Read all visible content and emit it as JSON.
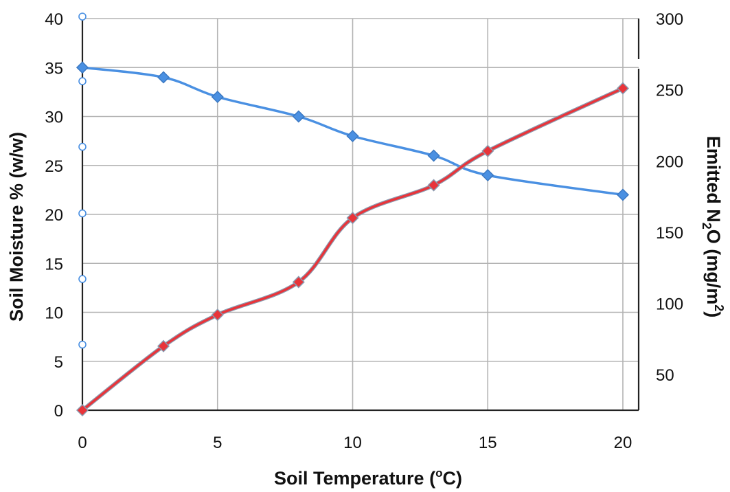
{
  "chart_data": {
    "type": "line",
    "xlabel": "Soil Temperature (",
    "xlabel_sup": "o",
    "xlabel_suffix": "C)",
    "ylabel": "Soil Moisture % (w/w)",
    "y2label_prefix": "Emitted N",
    "y2label_sub": "2",
    "y2label_mid": "O (mg/m",
    "y2label_sup": "2",
    "y2label_suffix": ")",
    "xlim": [
      0,
      20.6
    ],
    "ylim": [
      0,
      40
    ],
    "y2lim": [
      25,
      300
    ],
    "xticks": [
      0,
      5,
      10,
      15,
      20
    ],
    "yticks": [
      0,
      5,
      10,
      15,
      20,
      25,
      30,
      35,
      40
    ],
    "y2ticks": [
      50,
      100,
      150,
      200,
      250,
      300
    ],
    "grid": true,
    "series": [
      {
        "axis": "left",
        "color": "#4a90e2",
        "marker": "diamond",
        "x": [
          0,
          3,
          5,
          8,
          10,
          13,
          15,
          20
        ],
        "y": [
          35,
          34,
          32,
          30,
          28,
          26,
          24,
          22
        ]
      },
      {
        "axis": "right",
        "color": "#e8343a",
        "marker": "diamond",
        "x": [
          0,
          3,
          5,
          8,
          10,
          13,
          15,
          20
        ],
        "y": [
          25,
          70,
          92,
          115,
          160,
          183,
          207,
          251
        ]
      }
    ],
    "left_axis_open_markers": [
      40.2,
      33.6,
      26.9,
      20.1,
      13.4,
      6.7
    ]
  }
}
